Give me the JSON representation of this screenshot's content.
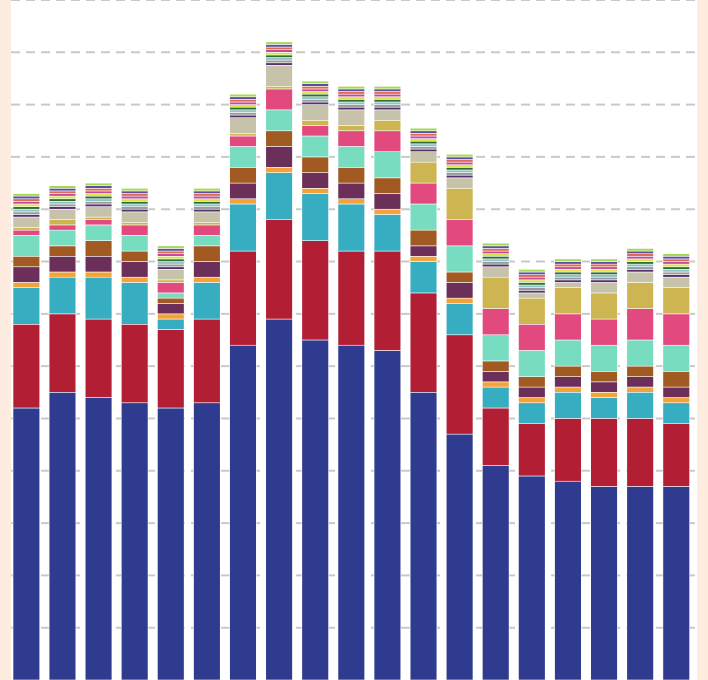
{
  "chart_data": {
    "type": "bar",
    "stacked": true,
    "title": "",
    "xlabel": "",
    "ylabel": "",
    "ylim": [
      0,
      13
    ],
    "grid": true,
    "grid_step": 1,
    "legend": "none",
    "categories": [
      "",
      "",
      "",
      "",
      "",
      "",
      "",
      "",
      "",
      "",
      "",
      "",
      "",
      "",
      "",
      "",
      "",
      "",
      ""
    ],
    "series": [
      {
        "color": "#2e3b8e",
        "values": [
          5.2,
          5.5,
          5.4,
          5.3,
          5.2,
          5.3,
          6.4,
          6.9,
          6.5,
          6.4,
          6.3,
          5.5,
          4.7,
          4.1,
          3.9,
          3.8,
          3.7,
          3.7,
          3.7
        ]
      },
      {
        "color": "#b21f35",
        "values": [
          1.6,
          1.5,
          1.5,
          1.5,
          1.5,
          1.6,
          1.8,
          1.9,
          1.9,
          1.8,
          1.9,
          1.9,
          1.9,
          1.1,
          1.0,
          1.2,
          1.3,
          1.3,
          1.2
        ]
      },
      {
        "color": "#36adc0",
        "values": [
          0.7,
          0.7,
          0.8,
          0.8,
          0.2,
          0.7,
          0.9,
          0.9,
          0.9,
          0.9,
          0.7,
          0.6,
          0.6,
          0.4,
          0.4,
          0.5,
          0.4,
          0.5,
          0.4
        ]
      },
      {
        "color": "#f2a33a",
        "values": [
          0.1,
          0.1,
          0.1,
          0.1,
          0.1,
          0.1,
          0.1,
          0.1,
          0.1,
          0.1,
          0.1,
          0.1,
          0.1,
          0.1,
          0.1,
          0.1,
          0.1,
          0.1,
          0.1
        ]
      },
      {
        "color": "#6b2f5a",
        "values": [
          0.3,
          0.3,
          0.3,
          0.3,
          0.2,
          0.3,
          0.3,
          0.4,
          0.3,
          0.3,
          0.3,
          0.2,
          0.3,
          0.2,
          0.2,
          0.2,
          0.2,
          0.2,
          0.2
        ]
      },
      {
        "color": "#a05a22",
        "values": [
          0.2,
          0.2,
          0.3,
          0.2,
          0.1,
          0.3,
          0.3,
          0.3,
          0.3,
          0.3,
          0.3,
          0.3,
          0.2,
          0.2,
          0.2,
          0.2,
          0.2,
          0.2,
          0.3
        ]
      },
      {
        "color": "#77dcc0",
        "values": [
          0.4,
          0.3,
          0.3,
          0.3,
          0.1,
          0.2,
          0.4,
          0.4,
          0.4,
          0.4,
          0.5,
          0.5,
          0.5,
          0.5,
          0.5,
          0.5,
          0.5,
          0.5,
          0.5
        ]
      },
      {
        "color": "#e2497f",
        "values": [
          0.1,
          0.1,
          0.1,
          0.2,
          0.2,
          0.2,
          0.2,
          0.4,
          0.2,
          0.3,
          0.4,
          0.4,
          0.5,
          0.5,
          0.5,
          0.5,
          0.5,
          0.6,
          0.6
        ]
      },
      {
        "color": "#cdb552",
        "values": [
          0.05,
          0.1,
          0.05,
          0.05,
          0.05,
          0.05,
          0.05,
          0.05,
          0.1,
          0.1,
          0.2,
          0.4,
          0.6,
          0.6,
          0.5,
          0.5,
          0.5,
          0.5,
          0.5
        ]
      },
      {
        "color": "#c7c2aa",
        "values": [
          0.2,
          0.2,
          0.2,
          0.2,
          0.2,
          0.2,
          0.3,
          0.4,
          0.3,
          0.3,
          0.2,
          0.2,
          0.2,
          0.2,
          0.1,
          0.1,
          0.2,
          0.2,
          0.2
        ]
      },
      {
        "color": "#53336e",
        "values": [
          0.05,
          0.05,
          0.05,
          0.05,
          0.05,
          0.05,
          0.05,
          0.05,
          0.05,
          0.05,
          0.05,
          0.05,
          0.05,
          0.05,
          0.05,
          0.05,
          0.05,
          0.05,
          0.05
        ]
      },
      {
        "color": "#9a9a9a",
        "values": [
          0.05,
          0.05,
          0.05,
          0.05,
          0.05,
          0.05,
          0.05,
          0.05,
          0.05,
          0.05,
          0.05,
          0.05,
          0.05,
          0.05,
          0.05,
          0.05,
          0.05,
          0.05,
          0.05
        ]
      },
      {
        "color": "#8bc3c6",
        "values": [
          0.05,
          0.05,
          0.05,
          0.05,
          0.05,
          0.05,
          0.05,
          0.05,
          0.05,
          0.05,
          0.05,
          0.05,
          0.05,
          0.05,
          0.05,
          0.05,
          0.05,
          0.05,
          0.05
        ]
      },
      {
        "color": "#2f6f32",
        "values": [
          0.05,
          0.05,
          0.05,
          0.05,
          0.05,
          0.05,
          0.05,
          0.05,
          0.05,
          0.05,
          0.05,
          0.05,
          0.05,
          0.05,
          0.05,
          0.05,
          0.05,
          0.05,
          0.05
        ]
      },
      {
        "color": "#d9e24c",
        "values": [
          0.05,
          0.05,
          0.05,
          0.05,
          0.05,
          0.05,
          0.05,
          0.05,
          0.05,
          0.05,
          0.05,
          0.05,
          0.05,
          0.05,
          0.05,
          0.05,
          0.05,
          0.05,
          0.05
        ]
      },
      {
        "color": "#c44a9e",
        "values": [
          0.05,
          0.05,
          0.05,
          0.05,
          0.05,
          0.05,
          0.05,
          0.05,
          0.05,
          0.05,
          0.05,
          0.05,
          0.05,
          0.05,
          0.05,
          0.05,
          0.05,
          0.05,
          0.05
        ]
      },
      {
        "color": "#e06a50",
        "values": [
          0.05,
          0.05,
          0.05,
          0.05,
          0.05,
          0.05,
          0.05,
          0.05,
          0.05,
          0.05,
          0.05,
          0.05,
          0.05,
          0.05,
          0.05,
          0.05,
          0.05,
          0.05,
          0.05
        ]
      },
      {
        "color": "#5a4fa0",
        "values": [
          0.05,
          0.05,
          0.05,
          0.05,
          0.05,
          0.05,
          0.05,
          0.05,
          0.05,
          0.05,
          0.05,
          0.05,
          0.05,
          0.05,
          0.05,
          0.05,
          0.05,
          0.05,
          0.05
        ]
      },
      {
        "color": "#a6d854",
        "values": [
          0.05,
          0.05,
          0.05,
          0.05,
          0.05,
          0.05,
          0.05,
          0.05,
          0.05,
          0.05,
          0.05,
          0.05,
          0.05,
          0.05,
          0.05,
          0.05,
          0.05,
          0.05,
          0.05
        ]
      }
    ]
  }
}
